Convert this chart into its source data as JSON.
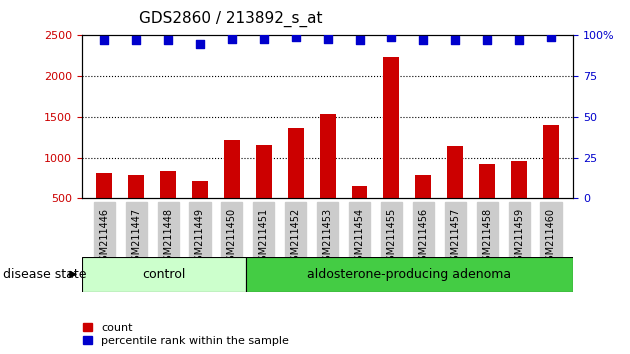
{
  "title": "GDS2860 / 213892_s_at",
  "samples": [
    "GSM211446",
    "GSM211447",
    "GSM211448",
    "GSM211449",
    "GSM211450",
    "GSM211451",
    "GSM211452",
    "GSM211453",
    "GSM211454",
    "GSM211455",
    "GSM211456",
    "GSM211457",
    "GSM211458",
    "GSM211459",
    "GSM211460"
  ],
  "counts": [
    810,
    785,
    840,
    710,
    1220,
    1160,
    1360,
    1540,
    650,
    2240,
    785,
    1140,
    920,
    960,
    1400
  ],
  "percentiles": [
    97,
    97,
    97,
    95,
    98,
    98,
    99,
    98,
    97,
    99,
    97,
    97,
    97,
    97,
    99
  ],
  "ylim_left": [
    500,
    2500
  ],
  "yticks_left": [
    500,
    1000,
    1500,
    2000,
    2500
  ],
  "yticks_right": [
    0,
    25,
    50,
    75,
    100
  ],
  "bar_color": "#cc0000",
  "dot_color": "#0000cc",
  "control_count": 5,
  "adenoma_count": 10,
  "control_label": "control",
  "adenoma_label": "aldosterone-producing adenoma",
  "disease_state_label": "disease state",
  "legend_count_label": "count",
  "legend_pct_label": "percentile rank within the sample",
  "control_bg": "#ccffcc",
  "adenoma_bg": "#44cc44",
  "tick_label_bg": "#cccccc",
  "dot_size": 30,
  "bar_width": 0.5,
  "grid_lines": [
    1000,
    1500,
    2000
  ],
  "grid_style": "dotted",
  "grid_color": "black",
  "ylabel_left_color": "#cc0000",
  "ylabel_right_color": "#0000cc",
  "title_fontsize": 11,
  "tick_fontsize": 7,
  "label_fontsize": 9
}
